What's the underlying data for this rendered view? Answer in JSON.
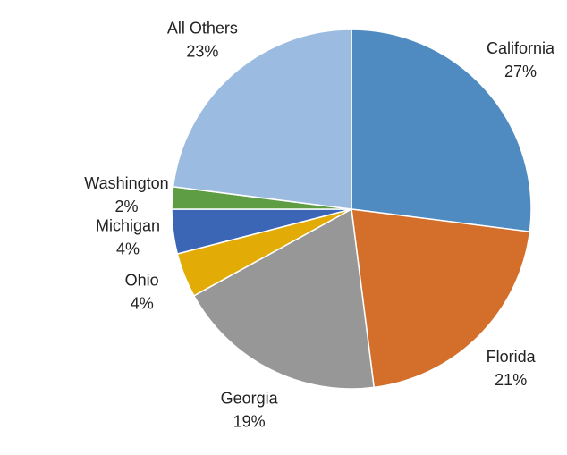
{
  "chart_data": {
    "type": "pie",
    "categories": [
      "California",
      "Florida",
      "Georgia",
      "Ohio",
      "Michigan",
      "Washington",
      "All Others"
    ],
    "values": [
      27,
      21,
      19,
      4,
      4,
      2,
      23
    ],
    "value_labels": [
      "27%",
      "21%",
      "19%",
      "4%",
      "4%",
      "2%",
      "23%"
    ],
    "colors": [
      "#4f8bc0",
      "#d36e2b",
      "#979797",
      "#e3ab06",
      "#3b65b5",
      "#5f9d45",
      "#9bbbe0"
    ]
  }
}
